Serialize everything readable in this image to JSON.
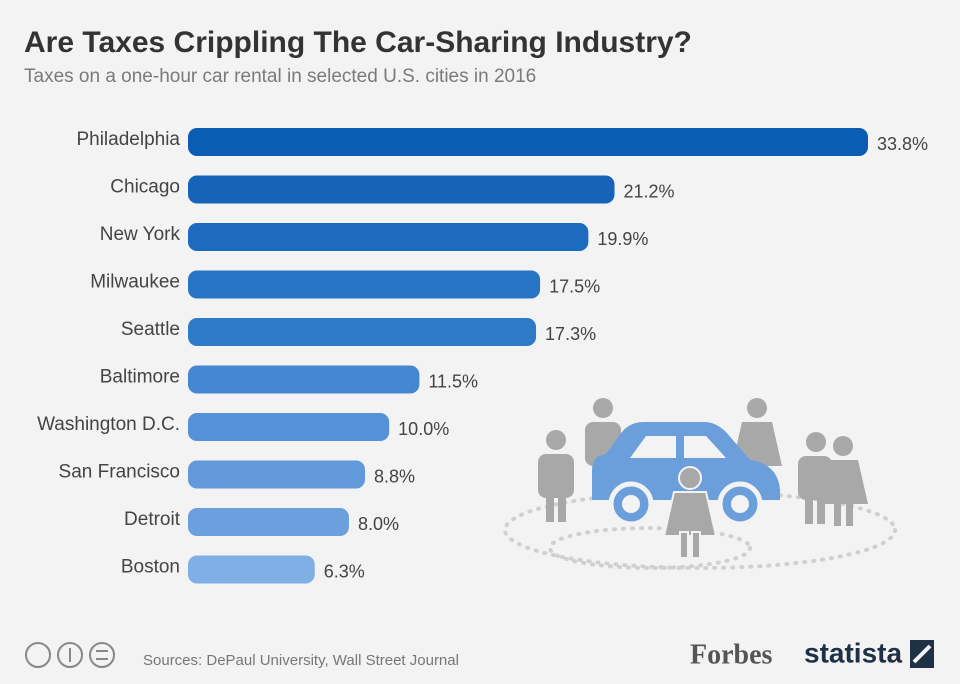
{
  "chart_data": {
    "type": "bar",
    "orientation": "horizontal",
    "title": "Are Taxes Crippling The Car-Sharing Industry?",
    "subtitle": "Taxes on a one-hour car rental in selected U.S. cities in 2016",
    "categories": [
      "Philadelphia",
      "Chicago",
      "New York",
      "Milwaukee",
      "Seattle",
      "Baltimore",
      "Washington D.C.",
      "San Francisco",
      "Detroit",
      "Boston"
    ],
    "values": [
      33.8,
      21.2,
      19.9,
      17.5,
      17.3,
      11.5,
      10.0,
      8.8,
      8.0,
      6.3
    ],
    "value_labels": [
      "33.8%",
      "21.2%",
      "19.9%",
      "17.5%",
      "17.3%",
      "11.5%",
      "10.0%",
      "8.8%",
      "8.0%",
      "6.3%"
    ],
    "colors": [
      "#0b5cb3",
      "#1564b9",
      "#1d6bbf",
      "#2874c4",
      "#2f7ac8",
      "#4586d0",
      "#5591d6",
      "#6199da",
      "#6c9fde",
      "#80afe6"
    ],
    "source": "Sources: DePaul University, Wall Street Journal",
    "brands": [
      "Forbes",
      "statista"
    ]
  }
}
